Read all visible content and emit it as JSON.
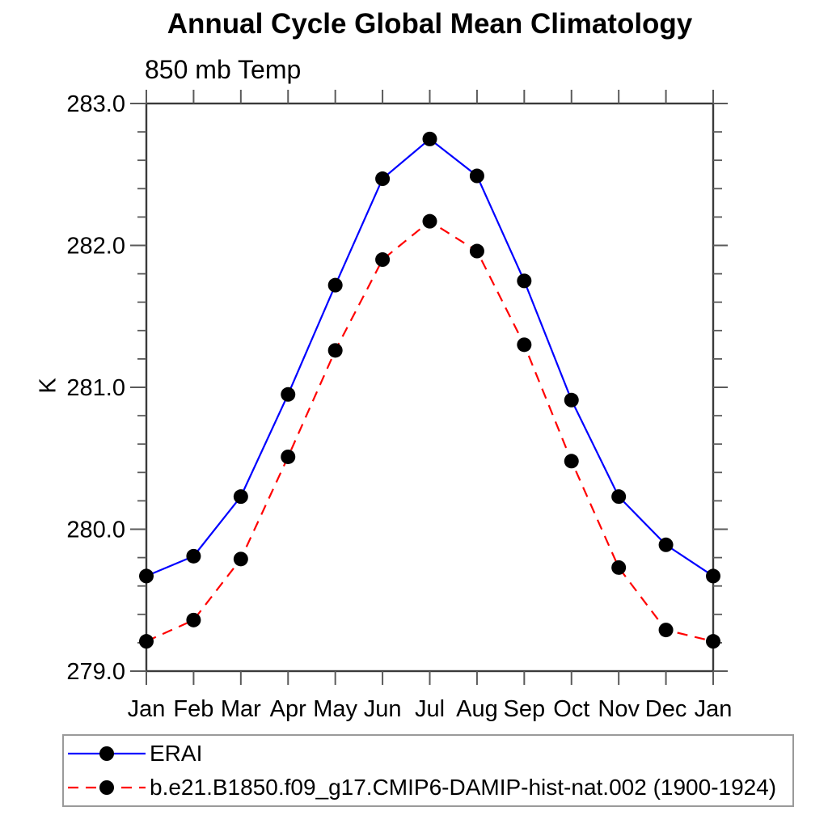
{
  "title": "Annual Cycle Global Mean Climatology",
  "subtitle": "850 mb Temp",
  "ylabel": "K",
  "chart_data": {
    "type": "line",
    "categories": [
      "Jan",
      "Feb",
      "Mar",
      "Apr",
      "May",
      "Jun",
      "Jul",
      "Aug",
      "Sep",
      "Oct",
      "Nov",
      "Dec",
      "Jan"
    ],
    "series": [
      {
        "name": "ERAI",
        "color": "#0000ff",
        "line_style": "solid",
        "marker": "black-dot",
        "values": [
          279.67,
          279.81,
          280.23,
          280.95,
          281.72,
          282.47,
          282.75,
          282.49,
          281.75,
          280.91,
          280.23,
          279.89,
          279.67
        ]
      },
      {
        "name": "b.e21.B1850.f09_g17.CMIP6-DAMIP-hist-nat.002 (1900-1924)",
        "color": "#ff0000",
        "line_style": "dashed",
        "marker": "black-dot",
        "values": [
          279.21,
          279.36,
          279.79,
          280.51,
          281.26,
          281.9,
          282.17,
          281.96,
          281.3,
          280.48,
          279.73,
          279.29,
          279.21
        ]
      }
    ],
    "ylim": [
      279.0,
      283.0
    ],
    "yticks": [
      279.0,
      280.0,
      281.0,
      282.0,
      283.0
    ],
    "ytick_labels": [
      "279.0",
      "280.0",
      "281.0",
      "282.0",
      "283.0"
    ],
    "y_minor_step": 0.2,
    "grid": false,
    "legend_position": "bottom-left-box",
    "marker_color": "#000000"
  }
}
